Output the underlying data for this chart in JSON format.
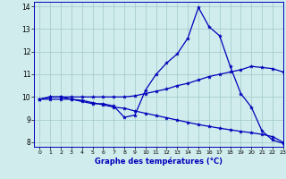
{
  "title": "Graphe des températures (°C)",
  "background_color": "#d0ecec",
  "grid_color": "#a0c8c8",
  "line_color": "#0000bb",
  "xlim": [
    -0.5,
    23
  ],
  "ylim": [
    7.8,
    14.2
  ],
  "yticks": [
    8,
    9,
    10,
    11,
    12,
    13,
    14
  ],
  "xticks": [
    0,
    1,
    2,
    3,
    4,
    5,
    6,
    7,
    8,
    9,
    10,
    11,
    12,
    13,
    14,
    15,
    16,
    17,
    18,
    19,
    20,
    21,
    22,
    23
  ],
  "line1_x": [
    0,
    1,
    2,
    3,
    4,
    5,
    6,
    7,
    8,
    9,
    10,
    11,
    12,
    13,
    14,
    15,
    16,
    17,
    18,
    19,
    20,
    21,
    22,
    23
  ],
  "line1_y": [
    9.9,
    10.0,
    10.0,
    9.9,
    9.8,
    9.7,
    9.7,
    9.6,
    9.1,
    9.2,
    10.3,
    11.0,
    11.5,
    11.9,
    12.6,
    13.95,
    13.1,
    12.7,
    11.35,
    10.15,
    9.55,
    8.5,
    8.1,
    7.95
  ],
  "line2_x": [
    0,
    1,
    2,
    3,
    4,
    5,
    6,
    7,
    8,
    9,
    10,
    11,
    12,
    13,
    14,
    15,
    16,
    17,
    18,
    19,
    20,
    21,
    22,
    23
  ],
  "line2_y": [
    9.9,
    10.0,
    10.0,
    10.0,
    10.0,
    10.0,
    10.0,
    10.0,
    10.0,
    10.05,
    10.15,
    10.25,
    10.35,
    10.5,
    10.6,
    10.75,
    10.9,
    11.0,
    11.1,
    11.2,
    11.35,
    11.3,
    11.25,
    11.1
  ],
  "line3_x": [
    0,
    1,
    2,
    3,
    4,
    5,
    6,
    7,
    8,
    9,
    10,
    11,
    12,
    13,
    14,
    15,
    16,
    17,
    18,
    19,
    20,
    21,
    22,
    23
  ],
  "line3_y": [
    9.9,
    9.9,
    9.9,
    9.9,
    9.85,
    9.75,
    9.65,
    9.55,
    9.5,
    9.38,
    9.28,
    9.18,
    9.08,
    8.98,
    8.88,
    8.78,
    8.7,
    8.62,
    8.55,
    8.48,
    8.42,
    8.35,
    8.25,
    8.0
  ],
  "markersize": 3,
  "linewidth": 0.9
}
